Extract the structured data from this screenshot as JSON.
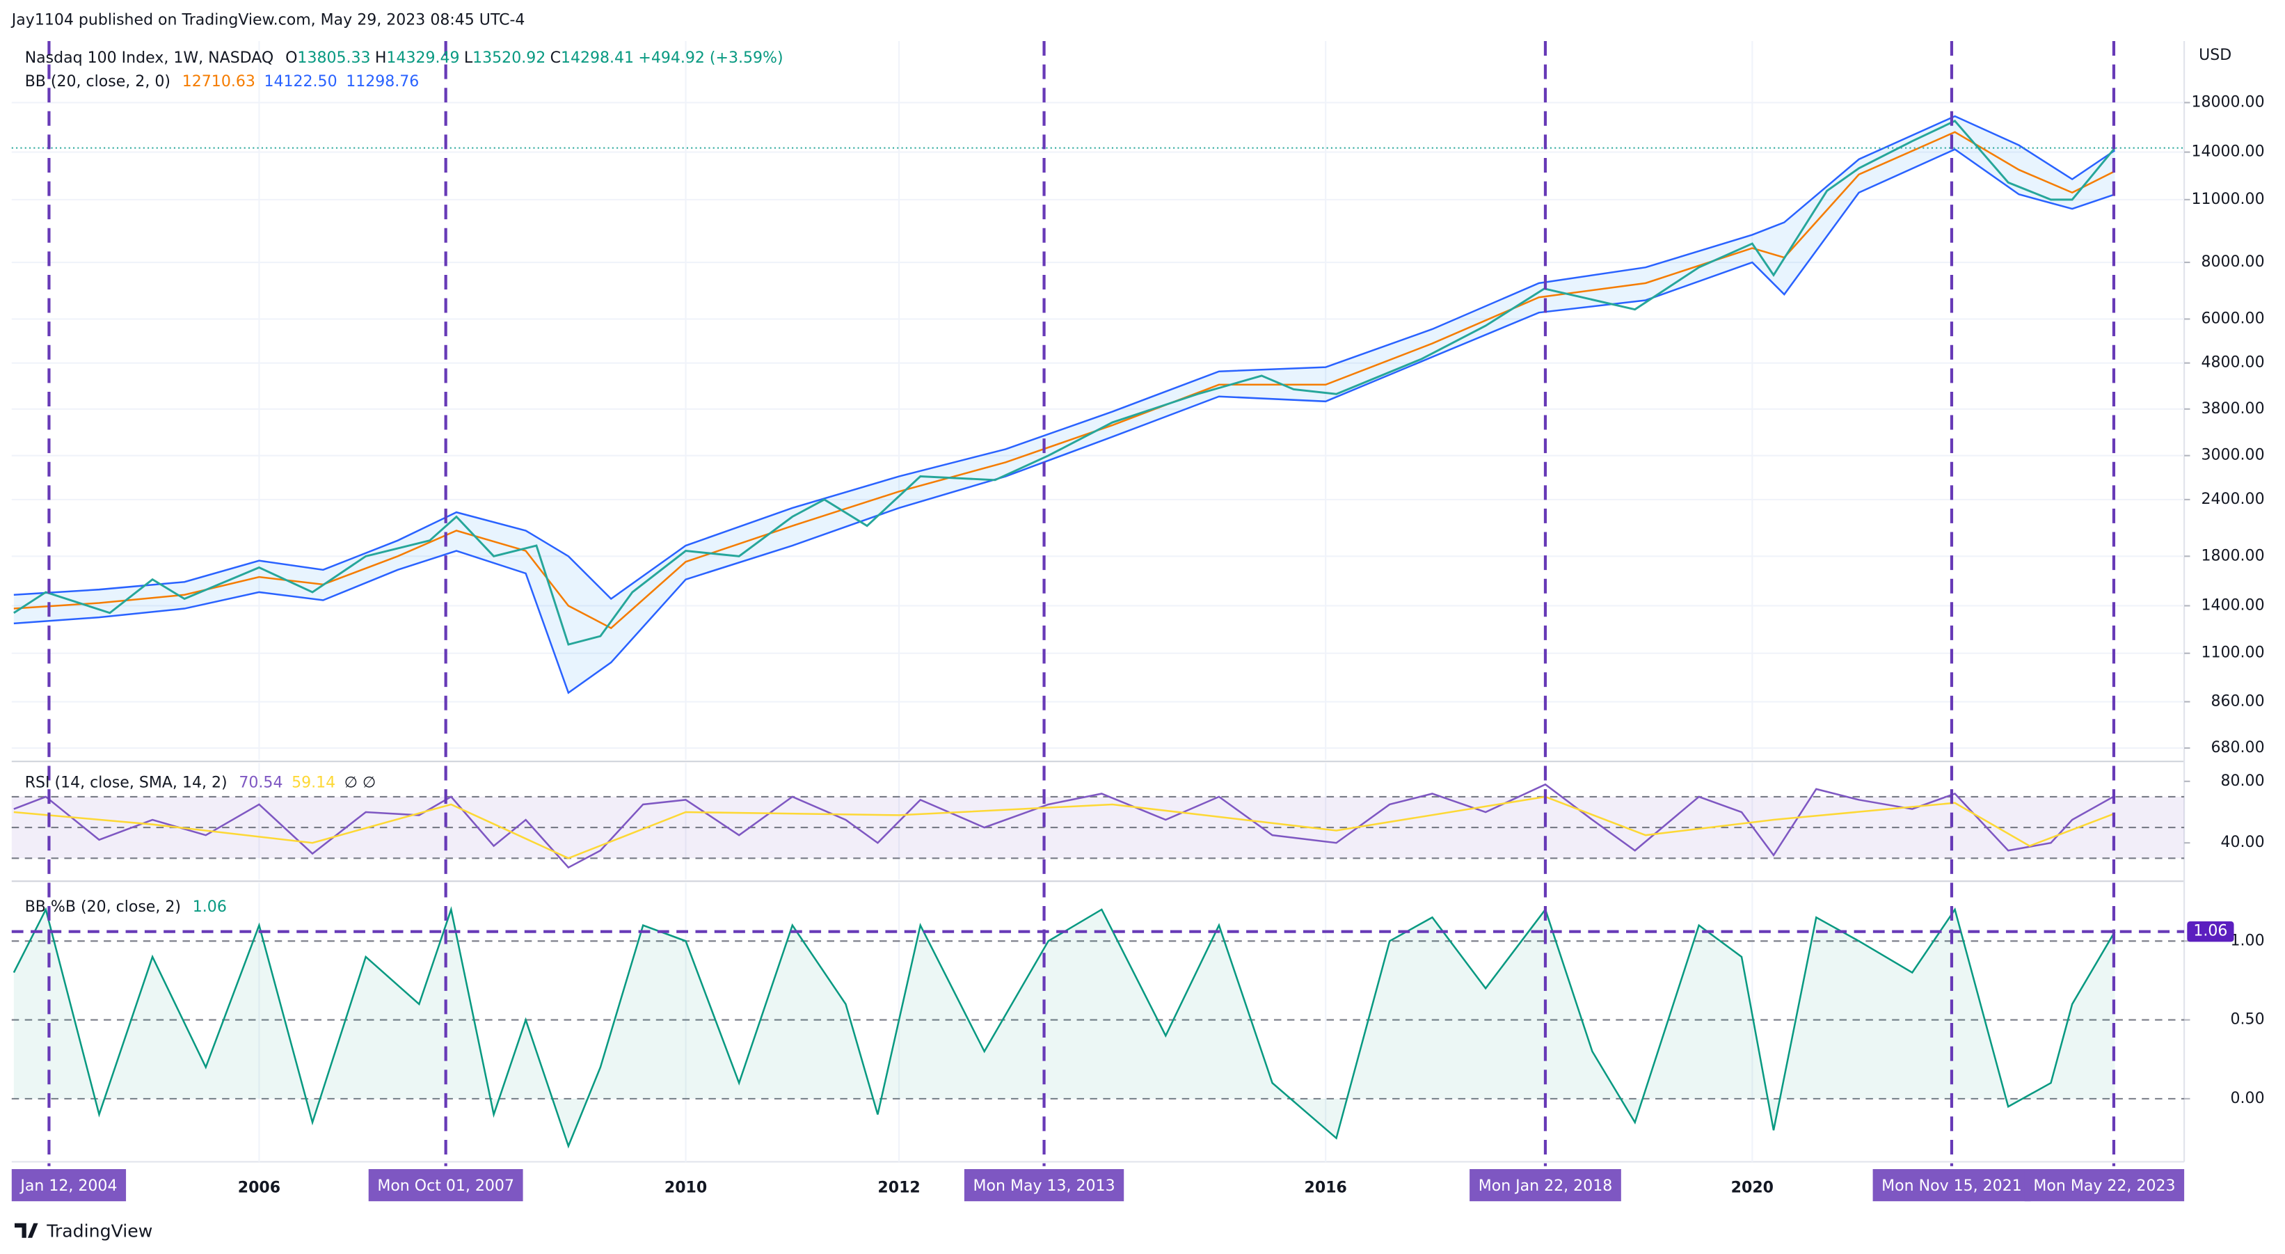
{
  "header": {
    "published": "Jay1104 published on TradingView.com, May 29, 2023 08:45 UTC-4"
  },
  "footer": {
    "brand": "TradingView"
  },
  "chart_data": [
    {
      "type": "line",
      "log_scale": true,
      "axis_unit": "USD",
      "legend": {
        "symbol": "Nasdaq 100 Index, 1W, NASDAQ",
        "ohlc": [
          [
            "O",
            "13805.33"
          ],
          [
            "H",
            "14329.49"
          ],
          [
            "L",
            "13520.92"
          ],
          [
            "C",
            "14298.41"
          ]
        ],
        "change": "+494.92 (+3.59%)",
        "indicator": "BB (20, close, 2, 0)",
        "indicator_values": [
          "12710.63",
          "14122.50",
          "11298.76"
        ]
      },
      "xlim": [
        2003.68,
        2024.05
      ],
      "xticks": [
        2006,
        2010,
        2012,
        2016,
        2020
      ],
      "ylim": [
        640,
        24600
      ],
      "yticks": [
        {
          "value": 18000,
          "label": "18000.00"
        },
        {
          "value": 14000,
          "label": "14000.00"
        },
        {
          "value": 11000,
          "label": "11000.00"
        },
        {
          "value": 8000,
          "label": "8000.00"
        },
        {
          "value": 6000,
          "label": "6000.00"
        },
        {
          "value": 4800,
          "label": "4800.00"
        },
        {
          "value": 3800,
          "label": "3800.00"
        },
        {
          "value": 3000,
          "label": "3000.00"
        },
        {
          "value": 2400,
          "label": "2400.00"
        },
        {
          "value": 1800,
          "label": "1800.00"
        },
        {
          "value": 1400,
          "label": "1400.00"
        },
        {
          "value": 1100,
          "label": "1100.00"
        },
        {
          "value": 860,
          "label": "860.00"
        },
        {
          "value": 680,
          "label": "680.00"
        }
      ],
      "grid": true,
      "markers": [
        {
          "x": 2004.03,
          "label": "Jan 12, 2004"
        },
        {
          "x": 2007.75,
          "label": "Mon Oct 01, 2007"
        },
        {
          "x": 2013.36,
          "label": "Mon May 13, 2013"
        },
        {
          "x": 2018.06,
          "label": "Mon Jan 22, 2018"
        },
        {
          "x": 2021.87,
          "label": "Mon Nov 15, 2021"
        },
        {
          "x": 2023.39,
          "label": "Mon May 22, 2023"
        }
      ],
      "series": [
        {
          "name": "Basis",
          "color": "#f57c00",
          "x": [
            2003.7,
            2004.5,
            2005.3,
            2006.0,
            2006.6,
            2007.3,
            2007.85,
            2008.5,
            2008.9,
            2009.3,
            2010.0,
            2011.0,
            2012.0,
            2013.0,
            2014.0,
            2015.0,
            2016.0,
            2017.0,
            2018.0,
            2019.0,
            2020.0,
            2020.3,
            2021.0,
            2021.9,
            2022.5,
            2023.0,
            2023.4
          ],
          "values": [
            1380,
            1420,
            1480,
            1620,
            1560,
            1800,
            2050,
            1850,
            1400,
            1250,
            1750,
            2100,
            2500,
            2900,
            3500,
            4300,
            4300,
            5300,
            6700,
            7200,
            8600,
            8200,
            12500,
            15500,
            12800,
            11400,
            12710.63
          ]
        },
        {
          "name": "Upper",
          "color": "#2962ff",
          "x": [
            2003.7,
            2004.5,
            2005.3,
            2006.0,
            2006.6,
            2007.3,
            2007.85,
            2008.5,
            2008.9,
            2009.3,
            2010.0,
            2011.0,
            2012.0,
            2013.0,
            2014.0,
            2015.0,
            2016.0,
            2017.0,
            2018.0,
            2019.0,
            2020.0,
            2020.3,
            2021.0,
            2021.9,
            2022.5,
            2023.0,
            2023.4
          ],
          "values": [
            1480,
            1520,
            1580,
            1760,
            1680,
            1950,
            2250,
            2050,
            1800,
            1450,
            1900,
            2300,
            2700,
            3100,
            3750,
            4600,
            4700,
            5700,
            7200,
            7800,
            9200,
            9800,
            13500,
            16800,
            14500,
            12200,
            14122.5
          ]
        },
        {
          "name": "Lower",
          "color": "#2962ff",
          "x": [
            2003.7,
            2004.5,
            2005.3,
            2006.0,
            2006.6,
            2007.3,
            2007.85,
            2008.5,
            2008.9,
            2009.3,
            2010.0,
            2011.0,
            2012.0,
            2013.0,
            2014.0,
            2015.0,
            2016.0,
            2017.0,
            2018.0,
            2019.0,
            2020.0,
            2020.3,
            2021.0,
            2021.9,
            2022.5,
            2023.0,
            2023.4
          ],
          "values": [
            1280,
            1320,
            1380,
            1500,
            1440,
            1680,
            1850,
            1650,
            900,
            1050,
            1600,
            1900,
            2300,
            2700,
            3300,
            4050,
            3950,
            4950,
            6200,
            6600,
            8000,
            6800,
            11400,
            14200,
            11300,
            10500,
            11298.76
          ]
        },
        {
          "name": "Close",
          "color": "#26a69a",
          "x": [
            2003.7,
            2004.0,
            2004.6,
            2005.0,
            2005.3,
            2006.0,
            2006.5,
            2007.0,
            2007.6,
            2007.85,
            2008.2,
            2008.6,
            2008.9,
            2009.2,
            2009.5,
            2010.0,
            2010.5,
            2011.0,
            2011.3,
            2011.7,
            2012.2,
            2012.9,
            2013.4,
            2014.0,
            2014.8,
            2015.4,
            2015.7,
            2016.1,
            2016.9,
            2017.5,
            2018.05,
            2018.9,
            2019.5,
            2020.0,
            2020.2,
            2020.7,
            2021.0,
            2021.5,
            2021.9,
            2022.4,
            2022.8,
            2023.0,
            2023.4
          ],
          "values": [
            1350,
            1500,
            1350,
            1600,
            1450,
            1700,
            1500,
            1800,
            1950,
            2200,
            1800,
            1900,
            1150,
            1200,
            1500,
            1850,
            1800,
            2200,
            2400,
            2100,
            2700,
            2650,
            3000,
            3550,
            4100,
            4500,
            4200,
            4100,
            4900,
            5800,
            7000,
            6300,
            7800,
            8800,
            7500,
            11500,
            12900,
            14800,
            16400,
            12000,
            11000,
            11000,
            14298.41
          ]
        }
      ]
    },
    {
      "type": "line",
      "legend": {
        "indicator": "RSI (14, close, SMA, 14, 2)",
        "indicator_values": [
          "70.54",
          "59.14"
        ],
        "extra": "∅ ∅"
      },
      "ylim": [
        16,
        92
      ],
      "yticks": [
        {
          "value": 80,
          "label": "80.00"
        },
        {
          "value": 40,
          "label": "40.00"
        }
      ],
      "levels": [
        70,
        50,
        30
      ],
      "band": [
        30,
        70
      ],
      "series": [
        {
          "name": "RSI",
          "color": "#7e57c2",
          "x": [
            2003.7,
            2004.0,
            2004.5,
            2005.0,
            2005.5,
            2006.0,
            2006.5,
            2007.0,
            2007.5,
            2007.8,
            2008.2,
            2008.5,
            2008.9,
            2009.2,
            2009.6,
            2010.0,
            2010.5,
            2011.0,
            2011.5,
            2011.8,
            2012.2,
            2012.8,
            2013.4,
            2013.9,
            2014.5,
            2015.0,
            2015.5,
            2016.1,
            2016.6,
            2017.0,
            2017.5,
            2018.06,
            2018.5,
            2018.9,
            2019.5,
            2019.9,
            2020.2,
            2020.6,
            2021.0,
            2021.5,
            2021.9,
            2022.4,
            2022.8,
            2023.0,
            2023.4
          ],
          "values": [
            62,
            70,
            42,
            55,
            45,
            65,
            33,
            60,
            58,
            70,
            38,
            55,
            24,
            35,
            65,
            68,
            45,
            70,
            55,
            40,
            68,
            50,
            65,
            72,
            55,
            70,
            45,
            40,
            65,
            72,
            60,
            78,
            55,
            35,
            70,
            60,
            32,
            75,
            68,
            62,
            72,
            35,
            40,
            55,
            70.54
          ]
        },
        {
          "name": "RSI SMA",
          "color": "#fdd835",
          "x": [
            2003.7,
            2005.0,
            2006.5,
            2007.8,
            2008.9,
            2010.0,
            2012.0,
            2014.0,
            2016.1,
            2018.06,
            2019.0,
            2020.2,
            2021.9,
            2022.6,
            2023.4
          ],
          "values": [
            60,
            52,
            40,
            65,
            30,
            60,
            58,
            65,
            48,
            70,
            45,
            55,
            66,
            38,
            59.14
          ]
        }
      ]
    },
    {
      "type": "area",
      "legend": {
        "indicator": "BB %B (20, close, 2)",
        "indicator_values": [
          "1.06"
        ]
      },
      "ylim": [
        -0.4,
        1.37
      ],
      "yticks": [
        {
          "value": 1,
          "label": "1.00"
        },
        {
          "value": 0.5,
          "label": "0.50"
        },
        {
          "value": 0,
          "label": "0.00"
        }
      ],
      "series": [
        {
          "name": "%B",
          "color": "#089981",
          "value_label": "1.06",
          "x": [
            2003.7,
            2004.0,
            2004.5,
            2005.0,
            2005.5,
            2006.0,
            2006.5,
            2007.0,
            2007.5,
            2007.8,
            2008.2,
            2008.5,
            2008.9,
            2009.2,
            2009.6,
            2010.0,
            2010.5,
            2011.0,
            2011.5,
            2011.8,
            2012.2,
            2012.8,
            2013.4,
            2013.9,
            2014.5,
            2015.0,
            2015.5,
            2016.1,
            2016.6,
            2017.0,
            2017.5,
            2018.06,
            2018.5,
            2018.9,
            2019.5,
            2019.9,
            2020.2,
            2020.6,
            2021.0,
            2021.5,
            2021.9,
            2022.4,
            2022.8,
            2023.0,
            2023.4
          ],
          "values": [
            0.8,
            1.2,
            -0.1,
            0.9,
            0.2,
            1.1,
            -0.15,
            0.9,
            0.6,
            1.2,
            -0.1,
            0.5,
            -0.3,
            0.2,
            1.1,
            1.0,
            0.1,
            1.1,
            0.6,
            -0.1,
            1.1,
            0.3,
            1.0,
            1.2,
            0.4,
            1.1,
            0.1,
            -0.25,
            1.0,
            1.15,
            0.7,
            1.2,
            0.3,
            -0.15,
            1.1,
            0.9,
            -0.2,
            1.15,
            1.0,
            0.8,
            1.2,
            -0.05,
            0.1,
            0.6,
            1.06
          ]
        }
      ]
    }
  ]
}
